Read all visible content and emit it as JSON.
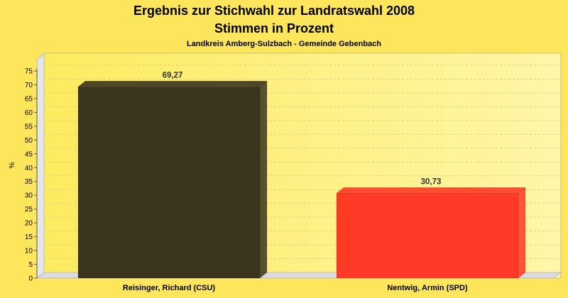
{
  "chart_data": {
    "type": "bar",
    "title": "Ergebnis zur Stichwahl zur Landratswahl 2008",
    "title_line2": "Stimmen in Prozent",
    "subtitle": "Landkreis Amberg-Sulzbach - Gemeinde Gebenbach",
    "ylabel": "%",
    "ylim": [
      0,
      75
    ],
    "ytick_step": 5,
    "grid": true,
    "categories": [
      "Reisinger, Richard (CSU)",
      "Nentwig, Armin (SPD)"
    ],
    "values": [
      69.27,
      30.73
    ],
    "value_labels": [
      "69,27",
      "30,73"
    ],
    "colors": [
      "#3b3520",
      "#ff3a26"
    ],
    "background_color": "#fde65c",
    "plot_color": "#fff6a0"
  }
}
